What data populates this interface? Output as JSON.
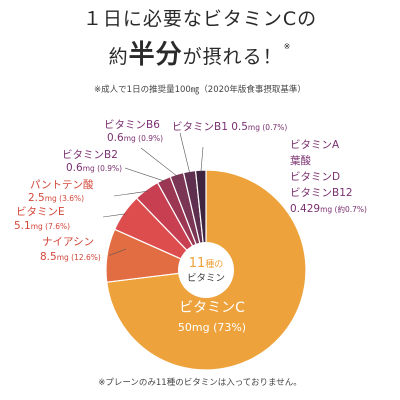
{
  "headline": {
    "line1": "１日に必要なビタミンCの",
    "line2_prefix": "約",
    "line2_big": "半分",
    "line2_suffix": "が摂れる！",
    "mark": "※"
  },
  "note_top": "※成人で1日の推奨量100㎎（2020年版食事摂取基準）",
  "note_bottom": "※プレーンのみ11種のビタミンは入っておりません。",
  "center": {
    "line1_num": "11",
    "line1_unit": "種の",
    "line2": "ビタミン"
  },
  "colors": {
    "vitamin_c": "#eda23b",
    "niacin": "#e26d42",
    "vitamin_e": "#de4d4d",
    "pantothenic": "#c83f52",
    "b2": "#9b3653",
    "b6": "#7b3555",
    "b1": "#5e2f4f",
    "others": "#3f2440",
    "label_purple": "#7b3070",
    "label_red": "#d2473a"
  },
  "chart_data": {
    "type": "pie",
    "series": [
      {
        "name": "ビタミンC",
        "value": 50,
        "unit": "mg",
        "percent": "73%",
        "color_key": "vitamin_c"
      },
      {
        "name": "ナイアシン",
        "value": 8.5,
        "unit": "mg",
        "percent": "12.6%",
        "color_key": "niacin"
      },
      {
        "name": "ビタミンE",
        "value": 5.1,
        "unit": "mg",
        "percent": "7.6%",
        "color_key": "vitamin_e"
      },
      {
        "name": "パントテン酸",
        "value": 2.5,
        "unit": "mg",
        "percent": "3.6%",
        "color_key": "pantothenic"
      },
      {
        "name": "ビタミンB2",
        "value": 0.6,
        "unit": "mg",
        "percent": "0.9%",
        "color_key": "b2"
      },
      {
        "name": "ビタミンB6",
        "value": 0.6,
        "unit": "mg",
        "percent": "0.9%",
        "color_key": "b6"
      },
      {
        "name": "ビタミンB1",
        "value": 0.5,
        "unit": "mg",
        "percent": "0.7%",
        "color_key": "b1"
      },
      {
        "name": "ビタミンA 葉酸 ビタミンD ビタミンB12",
        "value": 0.429,
        "unit": "mg",
        "percent": "約0.7%",
        "color_key": "others"
      }
    ],
    "labels": {
      "vitamin_c": {
        "name": "ビタミンC",
        "amount": "50mg (73%)"
      },
      "niacin": {
        "name": "ナイアシン",
        "amount": "8.5",
        "unit": "mg",
        "pct": "(12.6%)"
      },
      "vitamin_e": {
        "name": "ビタミンE",
        "amount": "5.1",
        "unit": "mg",
        "pct": "(7.6%)"
      },
      "pantothenic": {
        "name": "パントテン酸",
        "amount": "2.5",
        "unit": "mg",
        "pct": "(3.6%)"
      },
      "b2": {
        "name": "ビタミンB2",
        "amount": "0.6",
        "unit": "mg",
        "pct": "(0.9%)"
      },
      "b6": {
        "name": "ビタミンB6",
        "amount": "0.6",
        "unit": "mg",
        "pct": "(0.9%)"
      },
      "b1": {
        "name": "ビタミンB1",
        "amount": "0.5",
        "unit": "mg",
        "pct": "(0.7%)"
      },
      "others": {
        "names": [
          "ビタミンA",
          "葉酸",
          "ビタミンD",
          "ビタミンB12"
        ],
        "amount": "0.429",
        "unit": "mg",
        "pct": "(約0.7%)"
      }
    }
  }
}
